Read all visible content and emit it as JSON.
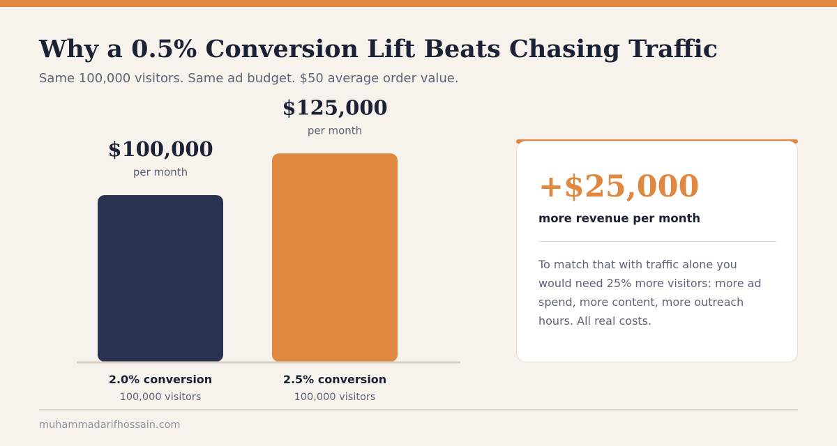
{
  "header": {
    "title": "Why a 0.5% Conversion Lift Beats Chasing Traffic",
    "subtitle": "Same 100,000 visitors. Same ad budget. $50 average order value."
  },
  "chart_data": {
    "type": "bar",
    "categories": [
      "2.0% conversion",
      "2.5% conversion"
    ],
    "category_sublabels": [
      "100,000 visitors",
      "100,000 visitors"
    ],
    "values": [
      100000,
      125000
    ],
    "data_labels": [
      "$100,000",
      "$125,000"
    ],
    "data_label_units": [
      "per month",
      "per month"
    ],
    "ylim": [
      0,
      150000
    ],
    "grid": false,
    "colors": [
      "#293351",
      "#e08740"
    ]
  },
  "card": {
    "big_number": "+$25,000",
    "label": "more revenue per month",
    "text": "To match that with traffic alone you would need 25% more visitors: more ad spend, more content, more outreach hours. All real costs."
  },
  "footer": {
    "site": "muhammadarifhossain.com"
  },
  "colors": {
    "accent": "#e08740",
    "navy": "#293351",
    "background": "#f7f2ec"
  }
}
